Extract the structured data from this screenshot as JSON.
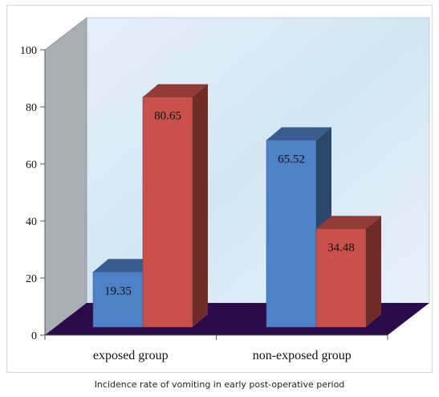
{
  "chart_data": {
    "type": "bar",
    "categories": [
      "exposed group",
      "non-exposed  group"
    ],
    "series": [
      {
        "values": [
          19.35,
          65.52
        ],
        "color": "#4f81c7"
      },
      {
        "values": [
          80.65,
          34.48
        ],
        "color": "#c9504b"
      }
    ],
    "data_labels": [
      [
        "19.35",
        "65.52"
      ],
      [
        "80.65",
        "34.48"
      ]
    ],
    "ylim": [
      0,
      100
    ],
    "yticks": [
      0,
      20,
      40,
      60,
      80,
      100
    ],
    "grid": false,
    "floor_color": "#2a0a4a",
    "wall_color": "#d6e8f5",
    "side_wall_color": "#a8aeb4"
  },
  "caption": "Incidence rate of vomiting in early post-operative period"
}
